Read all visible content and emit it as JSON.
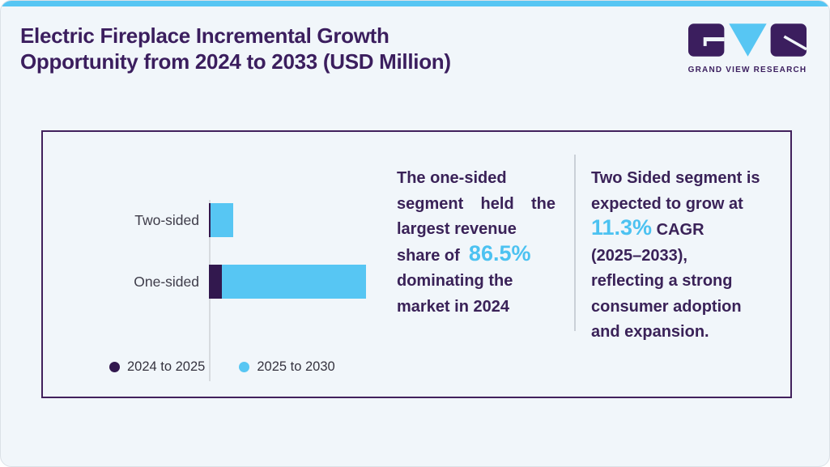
{
  "page": {
    "background": "#f1f6fa",
    "accent_blue": "#57c6f3",
    "brand_purple": "#3b1e5e",
    "card_border": "#42215c"
  },
  "header": {
    "title_lines": [
      "Electric Fireplace Incremental Growth",
      "Opportunity from 2024 to 2033 (USD Million)"
    ],
    "logo_text": "GRAND VIEW RESEARCH"
  },
  "chart_data": {
    "type": "bar",
    "orientation": "horizontal",
    "stacked": true,
    "categories": [
      "Two-sided",
      "One-sided"
    ],
    "series": [
      {
        "name": "2024 to 2025",
        "color": "#32184e",
        "values": [
          1,
          8.2
        ]
      },
      {
        "name": "2025 to 2030",
        "color": "#57c6f3",
        "values": [
          14.5,
          91.8
        ]
      }
    ],
    "units": "relative bar length (value axis not labeled in source)",
    "legend_position": "bottom",
    "value_axis_visible": false,
    "grid": false
  },
  "insights": {
    "highlight_color": "#4cc2f1",
    "one_sided": {
      "full_text": "The one-sided segment held the largest revenue share of 86.5% dominating the market in 2024",
      "lines": [
        {
          "parts": [
            {
              "text": "The one-sided"
            }
          ]
        },
        {
          "parts": [
            {
              "text": "segment held the"
            }
          ],
          "stretch": true
        },
        {
          "parts": [
            {
              "text": "largest revenue"
            }
          ]
        },
        {
          "parts": [
            {
              "text": "share of  "
            },
            {
              "text": "86.5%",
              "hl": true
            }
          ]
        },
        {
          "parts": [
            {
              "text": "dominating the"
            }
          ]
        },
        {
          "parts": [
            {
              "text": "market in 2024"
            }
          ]
        }
      ]
    },
    "two_sided": {
      "full_text": "Two Sided segment is expected to grow at 11.3% CAGR (2025–2033), reflecting a strong consumer adoption and expansion.",
      "lines": [
        {
          "parts": [
            {
              "text": "Two Sided segment is"
            }
          ]
        },
        {
          "parts": [
            {
              "text": "expected to grow at"
            }
          ]
        },
        {
          "parts": [
            {
              "text": "11.3%",
              "hl": true
            },
            {
              "text": " CAGR"
            }
          ]
        },
        {
          "parts": [
            {
              "text": "(2025–2033),"
            }
          ]
        },
        {
          "parts": [
            {
              "text": "reflecting a strong"
            }
          ]
        },
        {
          "parts": [
            {
              "text": "consumer adoption"
            }
          ]
        },
        {
          "parts": [
            {
              "text": "and expansion."
            }
          ]
        }
      ]
    }
  }
}
